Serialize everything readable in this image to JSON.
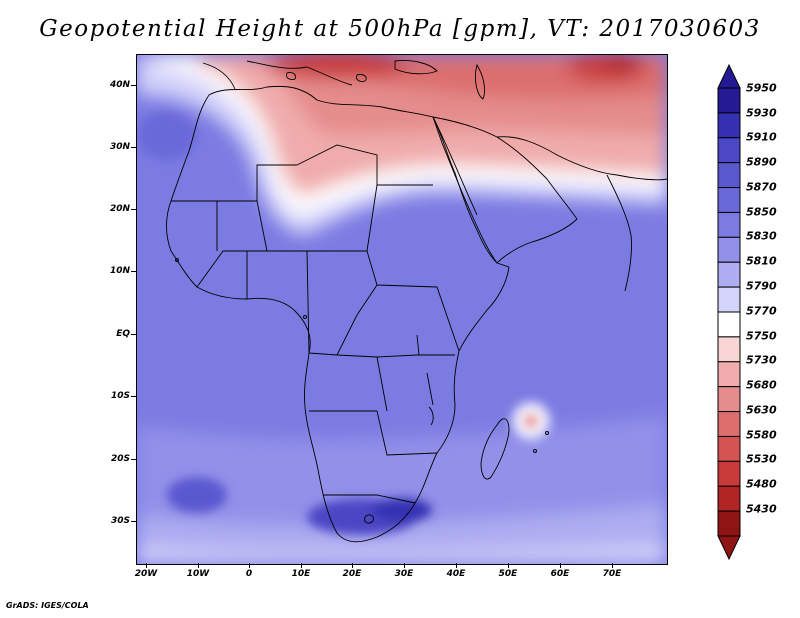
{
  "title": "Geopotential Height at 500hPa [gpm], VT: 2017030603",
  "credit": "GrADS: IGES/COLA",
  "map": {
    "lat_labels": [
      "40N",
      "30N",
      "20N",
      "10N",
      "EQ",
      "10S",
      "20S",
      "30S"
    ],
    "lat_values": [
      40,
      30,
      20,
      10,
      0,
      -10,
      -20,
      -30
    ],
    "lon_labels": [
      "20W",
      "10W",
      "0",
      "10E",
      "20E",
      "30E",
      "40E",
      "50E",
      "60E",
      "70E"
    ],
    "lon_values": [
      -20,
      -10,
      0,
      10,
      20,
      30,
      40,
      50,
      60,
      70
    ],
    "lon_range": [
      -22,
      80
    ],
    "lat_range": [
      -37,
      45
    ]
  },
  "colorbar": {
    "labels": [
      "5950",
      "5930",
      "5910",
      "5890",
      "5870",
      "5850",
      "5830",
      "5810",
      "5790",
      "5770",
      "5750",
      "5730",
      "5680",
      "5630",
      "5580",
      "5530",
      "5480",
      "5430"
    ],
    "colors": [
      "#251a94",
      "#3530b2",
      "#4c47c4",
      "#5a58cf",
      "#6a69d9",
      "#7b7be2",
      "#9290e9",
      "#aeadf1",
      "#d4d3fa",
      "#ffffff",
      "#f9d5d5",
      "#f0acac",
      "#e58c8c",
      "#dc6e6e",
      "#d55353",
      "#c93b3b",
      "#b22525",
      "#8f1414"
    ],
    "top_arrow_color": "#251a94",
    "bottom_arrow_color": "#8f1414"
  },
  "colors": {
    "background_field": "#7b7be2",
    "coastline": "#000000"
  }
}
